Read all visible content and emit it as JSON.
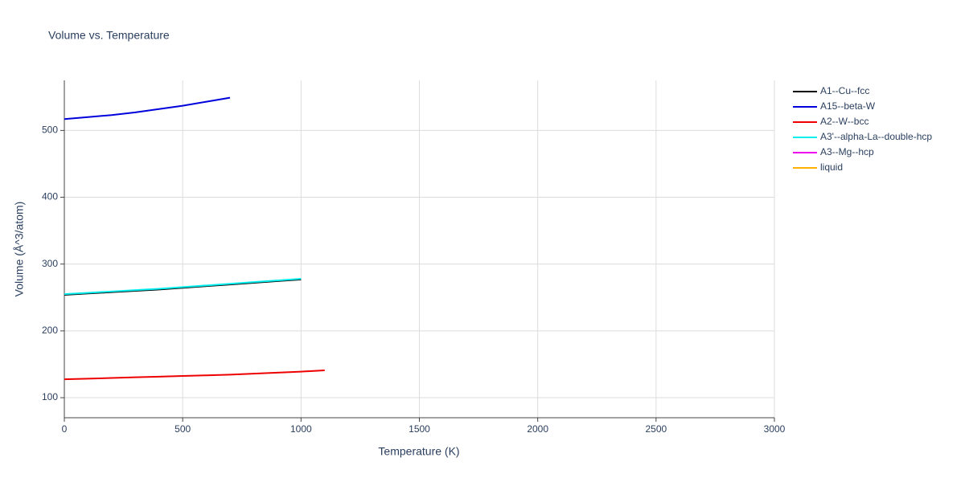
{
  "chart_data": {
    "type": "line",
    "title": "Volume vs. Temperature",
    "x_label": "Temperature (K)",
    "y_label": "Volume (Å^3/atom)",
    "xlim": [
      0,
      3000
    ],
    "xticks": [
      0,
      500,
      1000,
      1500,
      2000,
      2500,
      3000
    ],
    "ylim": [
      70,
      575
    ],
    "yticks": [
      100,
      200,
      300,
      400,
      500
    ],
    "grid": true,
    "series": [
      {
        "name": "A1--Cu--fcc",
        "color": "#000000",
        "x": [
          0,
          100,
          200,
          300,
          400,
          500,
          600,
          700,
          800,
          900,
          1000
        ],
        "values": [
          254,
          256,
          258,
          260,
          262,
          264.5,
          267,
          269.5,
          272,
          274.5,
          277
        ]
      },
      {
        "name": "A15--beta-W",
        "color": "#0000dd",
        "x": [
          0,
          100,
          200,
          300,
          400,
          500,
          600,
          700
        ],
        "values": [
          517,
          520,
          523,
          527,
          532,
          537,
          543,
          549
        ]
      },
      {
        "name": "A2--W--bcc",
        "color": "#ee0000",
        "x": [
          0,
          100,
          200,
          300,
          400,
          500,
          600,
          700,
          800,
          900,
          1000,
          1100
        ],
        "values": [
          127.5,
          128.5,
          129.5,
          130.5,
          131.5,
          132.5,
          133.5,
          134.5,
          136,
          137.5,
          139,
          141
        ]
      },
      {
        "name": "A3'--alpha-La--double-hcp",
        "color": "#00eeee",
        "x": [
          0,
          100,
          200,
          300,
          400,
          500,
          600,
          700,
          800,
          900,
          1000
        ],
        "values": [
          255,
          257,
          259,
          261,
          263,
          265.5,
          268,
          270.5,
          273,
          275.5,
          278
        ]
      },
      {
        "name": "A3--Mg--hcp",
        "color": "#ee00ee",
        "x": [],
        "values": []
      },
      {
        "name": "liquid",
        "color": "#ffb000",
        "x": [],
        "values": []
      }
    ]
  }
}
